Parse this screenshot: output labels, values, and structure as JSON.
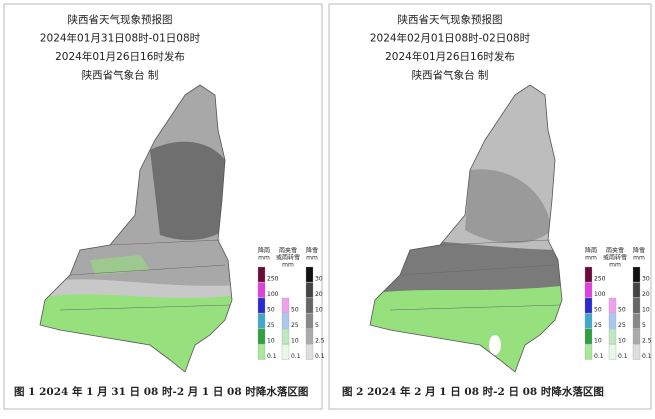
{
  "panels": [
    {
      "header": [
        "陕西省天气现象预报图",
        "2024年01月31日08时-01日08时",
        "2024年01月26日16时发布",
        "陕西省气象台  制"
      ],
      "caption": "图 1 2024 年 1 月 31 日 08 时-2 月 1 日 08 时降水落区图"
    },
    {
      "header": [
        "陕西省天气现象预报图",
        "2024年02月01日08时-02日08时",
        "2024年01月26日16时发布",
        "陕西省气象台  制"
      ],
      "caption": "图 2 2024 年 2 月 1 日 08 时-2 日 08 时降水落区图"
    }
  ],
  "legend": {
    "rain": {
      "title": [
        "降雨",
        "mm"
      ],
      "labels": [
        "250",
        "100",
        "50",
        "25",
        "10",
        "0.1"
      ]
    },
    "sleet": {
      "title": [
        "雨夹雪",
        "或雨转雪",
        "mm"
      ],
      "labels": [
        "50",
        "25",
        "10",
        "0.1"
      ]
    },
    "snow": {
      "title": [
        "降雪",
        "mm"
      ],
      "labels": [
        "30",
        "20",
        "10",
        "5",
        "2.5",
        "0.1"
      ]
    }
  }
}
